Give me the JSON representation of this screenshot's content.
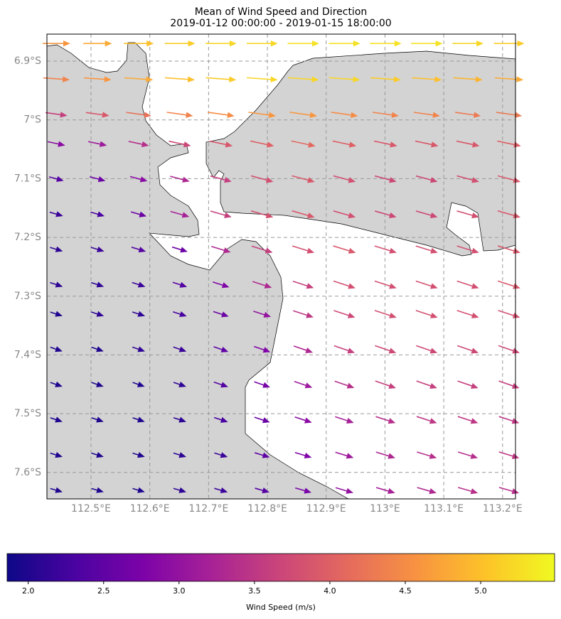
{
  "chart_data": {
    "type": "quiver",
    "title": "Mean of Wind Speed and Direction",
    "subtitle": "2019-01-12 00:00:00 - 2019-01-15 18:00:00",
    "colorbar_label": "Wind Speed (m/s)",
    "colormap": "plasma",
    "grid": true,
    "xlim": [
      112.425,
      113.222
    ],
    "ylim": [
      -7.645,
      -6.854
    ],
    "xticks": [
      {
        "value": 112.5,
        "label": "112.5°E"
      },
      {
        "value": 112.6,
        "label": "112.6°E"
      },
      {
        "value": 112.7,
        "label": "112.7°E"
      },
      {
        "value": 112.8,
        "label": "112.8°E"
      },
      {
        "value": 112.9,
        "label": "112.9°E"
      },
      {
        "value": 113,
        "label": "113°E"
      },
      {
        "value": 113.1,
        "label": "113.1°E"
      },
      {
        "value": 113.2,
        "label": "113.2°E"
      }
    ],
    "yticks": [
      {
        "value": -6.9,
        "label": "6.9°S"
      },
      {
        "value": -7,
        "label": "7°S"
      },
      {
        "value": -7.1,
        "label": "7.1°S"
      },
      {
        "value": -7.2,
        "label": "7.2°S"
      },
      {
        "value": -7.3,
        "label": "7.3°S"
      },
      {
        "value": -7.4,
        "label": "7.4°S"
      },
      {
        "value": -7.5,
        "label": "7.5°S"
      },
      {
        "value": -7.6,
        "label": "7.6°S"
      }
    ],
    "clim": [
      1.86,
      5.49
    ],
    "cticks": [
      {
        "value": 2,
        "label": "2.0"
      },
      {
        "value": 2.5,
        "label": "2.5"
      },
      {
        "value": 3,
        "label": "3.0"
      },
      {
        "value": 3.5,
        "label": "3.5"
      },
      {
        "value": 4,
        "label": "4.0"
      },
      {
        "value": 4.5,
        "label": "4.5"
      },
      {
        "value": 5,
        "label": "5.0"
      }
    ],
    "lon": [
      112.44,
      112.51,
      112.58,
      112.65,
      112.72,
      112.79,
      112.86,
      112.93,
      113.0,
      113.07,
      113.14,
      113.21
    ],
    "lat": [
      -6.87,
      -6.93,
      -6.99,
      -7.04,
      -7.1,
      -7.16,
      -7.22,
      -7.28,
      -7.33,
      -7.39,
      -7.45,
      -7.51,
      -7.57,
      -7.63
    ],
    "direction": [
      0,
      4,
      8,
      12,
      15,
      16,
      17,
      18,
      18,
      19,
      19,
      18,
      17,
      16
    ],
    "speed": [
      [
        4.6,
        4.8,
        5.0,
        5.1,
        5.2,
        5.2,
        5.3,
        5.3,
        5.3,
        5.3,
        5.2,
        5.1
      ],
      [
        4.4,
        4.6,
        4.8,
        5.0,
        5.1,
        5.2,
        5.2,
        5.2,
        5.1,
        5.0,
        4.9,
        4.8
      ],
      [
        3.6,
        3.9,
        4.2,
        4.4,
        4.5,
        4.6,
        4.6,
        4.5,
        4.4,
        4.4,
        4.3,
        4.3
      ],
      [
        2.9,
        3.1,
        3.4,
        3.7,
        3.9,
        4.0,
        4.1,
        4.0,
        3.9,
        3.9,
        3.9,
        4.0
      ],
      [
        2.4,
        2.6,
        2.9,
        3.3,
        3.6,
        3.8,
        3.9,
        3.8,
        3.7,
        3.7,
        3.8,
        3.9
      ],
      [
        2.2,
        2.3,
        2.6,
        3.2,
        3.6,
        3.8,
        3.9,
        3.8,
        3.7,
        3.7,
        3.8,
        3.9
      ],
      [
        2.1,
        2.2,
        2.4,
        2.6,
        3.3,
        3.6,
        3.8,
        3.9,
        3.8,
        3.8,
        3.8,
        3.9
      ],
      [
        2.1,
        2.1,
        2.2,
        2.4,
        2.8,
        3.3,
        3.6,
        3.8,
        3.8,
        3.8,
        3.8,
        3.9
      ],
      [
        2.0,
        2.1,
        2.1,
        2.3,
        2.6,
        3.0,
        3.5,
        3.7,
        3.8,
        3.8,
        3.8,
        3.8
      ],
      [
        2.0,
        2.0,
        2.1,
        2.2,
        2.5,
        2.8,
        3.3,
        3.6,
        3.7,
        3.7,
        3.7,
        3.7
      ],
      [
        2.0,
        2.0,
        2.0,
        2.1,
        2.4,
        2.7,
        3.1,
        3.4,
        3.6,
        3.6,
        3.6,
        3.6
      ],
      [
        2.0,
        2.0,
        2.0,
        2.1,
        2.3,
        2.6,
        2.9,
        3.2,
        3.4,
        3.5,
        3.5,
        3.5
      ],
      [
        2.0,
        2.0,
        2.0,
        2.1,
        2.2,
        2.5,
        2.8,
        3.1,
        3.3,
        3.4,
        3.4,
        3.5
      ],
      [
        2.0,
        2.0,
        2.0,
        2.1,
        2.2,
        2.4,
        2.7,
        3.0,
        3.2,
        3.3,
        3.4,
        3.4
      ]
    ]
  }
}
